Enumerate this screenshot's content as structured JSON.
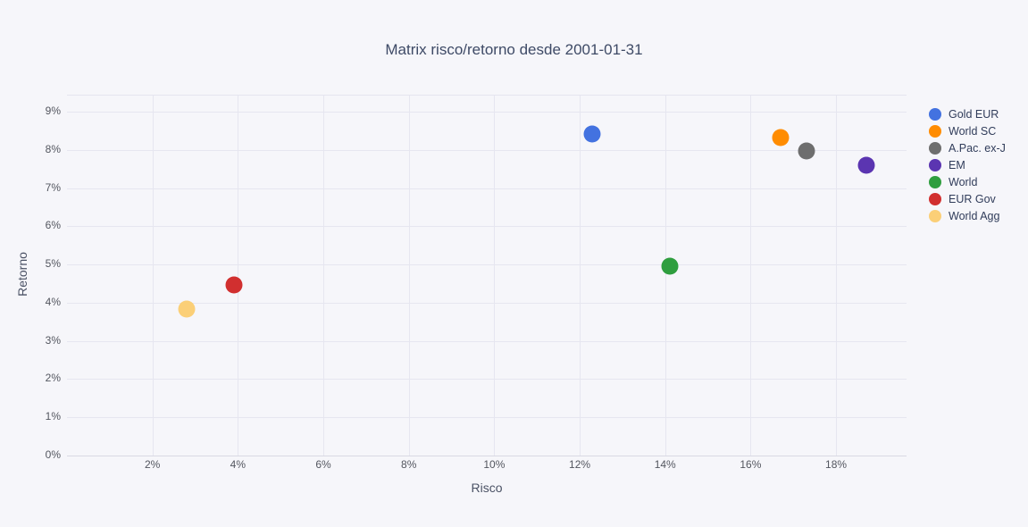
{
  "chart_data": {
    "type": "scatter",
    "title": "Matrix risco/retorno desde 2001-01-31",
    "xlabel": "Risco",
    "ylabel": "Retorno",
    "xlim": [
      0,
      19.65
    ],
    "ylim": [
      0,
      9.42
    ],
    "grid": true,
    "legend_position": "right",
    "x_ticks": [
      {
        "v": 2,
        "label": "2%"
      },
      {
        "v": 4,
        "label": "4%"
      },
      {
        "v": 6,
        "label": "6%"
      },
      {
        "v": 8,
        "label": "8%"
      },
      {
        "v": 10,
        "label": "10%"
      },
      {
        "v": 12,
        "label": "12%"
      },
      {
        "v": 14,
        "label": "14%"
      },
      {
        "v": 16,
        "label": "16%"
      },
      {
        "v": 18,
        "label": "18%"
      }
    ],
    "y_ticks": [
      {
        "v": 0,
        "label": "0%"
      },
      {
        "v": 1,
        "label": "1%"
      },
      {
        "v": 2,
        "label": "2%"
      },
      {
        "v": 3,
        "label": "3%"
      },
      {
        "v": 4,
        "label": "4%"
      },
      {
        "v": 5,
        "label": "5%"
      },
      {
        "v": 6,
        "label": "6%"
      },
      {
        "v": 7,
        "label": "7%"
      },
      {
        "v": 8,
        "label": "8%"
      },
      {
        "v": 9,
        "label": "9%"
      }
    ],
    "series": [
      {
        "name": "Gold EUR",
        "color": "#4372e0",
        "x": 12.3,
        "y": 8.42
      },
      {
        "name": "World SC",
        "color": "#ff8c00",
        "x": 16.7,
        "y": 8.31
      },
      {
        "name": "A.Pac. ex-J",
        "color": "#6e6e6e",
        "x": 17.3,
        "y": 7.97
      },
      {
        "name": "EM",
        "color": "#5b35b1",
        "x": 18.7,
        "y": 7.6
      },
      {
        "name": "World",
        "color": "#2f9e3f",
        "x": 14.1,
        "y": 4.95
      },
      {
        "name": "EUR Gov",
        "color": "#d12f2f",
        "x": 3.9,
        "y": 4.46
      },
      {
        "name": "World Agg",
        "color": "#fbcf77",
        "x": 2.8,
        "y": 3.84
      }
    ]
  }
}
